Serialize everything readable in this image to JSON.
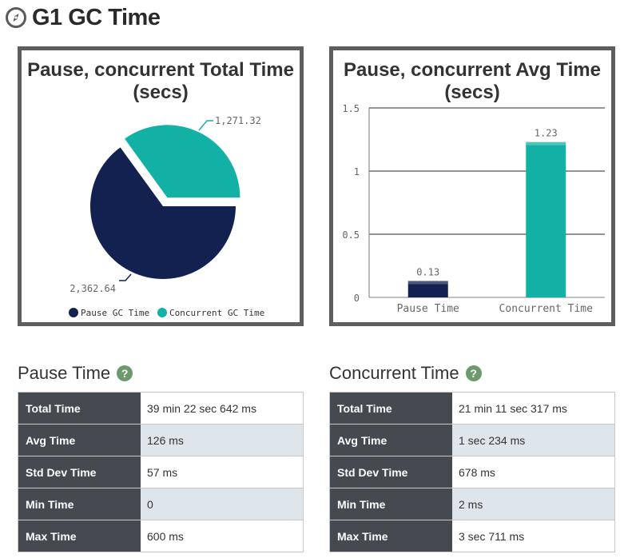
{
  "page": {
    "title": "G1 GC Time"
  },
  "chart_data": [
    {
      "type": "pie",
      "title": [
        "Pause, concurrent Total Time",
        "(secs)"
      ],
      "categories": [
        "Pause GC Time",
        "Concurrent GC Time"
      ],
      "values": [
        2362.64,
        1271.32
      ],
      "value_labels": [
        "2,362.64",
        "1,271.32"
      ],
      "colors": [
        "#12214f",
        "#13b0a5"
      ],
      "legend": "bottom"
    },
    {
      "type": "bar",
      "title": [
        "Pause, concurrent Avg Time",
        "(secs)"
      ],
      "categories": [
        "Pause Time",
        "Concurrent Time"
      ],
      "values": [
        0.13,
        1.23
      ],
      "value_labels": [
        "0.13",
        "1.23"
      ],
      "colors": [
        "#12214f",
        "#13b0a5"
      ],
      "ylim": [
        0,
        1.5
      ],
      "yticks": [
        0,
        0.5,
        1,
        1.5
      ],
      "ytick_labels": [
        "0",
        "0.5",
        "1",
        "1.5"
      ],
      "grid": true
    }
  ],
  "pause": {
    "title": "Pause Time",
    "help": "?",
    "rows": [
      {
        "label": "Total Time",
        "value": "39 min 22 sec 642 ms"
      },
      {
        "label": "Avg Time",
        "value": "126 ms"
      },
      {
        "label": "Std Dev Time",
        "value": "57 ms"
      },
      {
        "label": "Min Time",
        "value": "0"
      },
      {
        "label": "Max Time",
        "value": "600 ms"
      }
    ]
  },
  "concurrent": {
    "title": "Concurrent Time",
    "help": "?",
    "rows": [
      {
        "label": "Total Time",
        "value": "21 min 11 sec 317 ms"
      },
      {
        "label": "Avg Time",
        "value": "1 sec 234 ms"
      },
      {
        "label": "Std Dev Time",
        "value": "678 ms"
      },
      {
        "label": "Min Time",
        "value": "2 ms"
      },
      {
        "label": "Max Time",
        "value": "3 sec 711 ms"
      }
    ]
  }
}
